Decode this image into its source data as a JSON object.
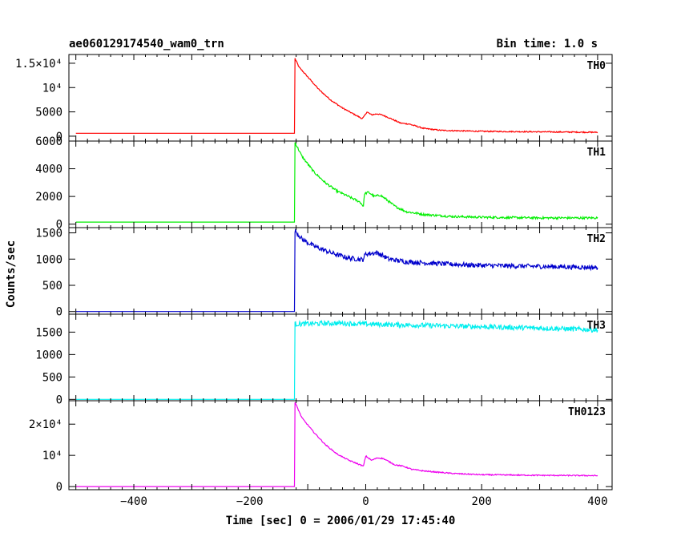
{
  "chart_data": {
    "type": "line",
    "title": "ae060129174540_wam0_trn",
    "subtitle": "Bin time: 1.0 s",
    "xlabel": "Time [sec] 0 = 2006/01/29 17:45:40",
    "ylabel": "Counts/sec",
    "xlim": [
      -512,
      425
    ],
    "x_ticks": [
      -400,
      -200,
      0,
      200,
      400
    ],
    "x_tick_labels": [
      "−400",
      "−200",
      "0",
      "200",
      "400"
    ],
    "panels": [
      {
        "name": "TH0",
        "color": "#ff0000",
        "ylim": [
          -1000,
          16800
        ],
        "y_ticks": [
          0,
          5000,
          10000,
          15000
        ],
        "y_tick_labels": [
          "0",
          "5000",
          "10⁴",
          "1.5×10⁴"
        ],
        "x": [
          -500,
          -125,
          -123,
          -122,
          -115,
          -100,
          -80,
          -60,
          -40,
          -20,
          -6,
          -3,
          2,
          10,
          20,
          30,
          40,
          60,
          75,
          100,
          130,
          200,
          300,
          400
        ],
        "y": [
          600,
          600,
          600,
          16000,
          14200,
          12200,
          9500,
          7400,
          5800,
          4500,
          3600,
          4000,
          5000,
          4400,
          4600,
          4300,
          3800,
          2700,
          2500,
          1600,
          1200,
          1000,
          900,
          800
        ],
        "noise": 120
      },
      {
        "name": "TH1",
        "color": "#00ee00",
        "ylim": [
          -250,
          6000
        ],
        "y_ticks": [
          0,
          2000,
          4000,
          6000
        ],
        "y_tick_labels": [
          "0",
          "2000",
          "4000",
          "6000"
        ],
        "x": [
          -500,
          -125,
          -123,
          -122,
          -110,
          -90,
          -70,
          -50,
          -30,
          -10,
          -4,
          -2,
          5,
          15,
          25,
          35,
          50,
          70,
          100,
          150,
          200,
          300,
          400
        ],
        "y": [
          150,
          150,
          150,
          5900,
          4900,
          3800,
          3000,
          2400,
          2000,
          1600,
          1300,
          2200,
          2300,
          2000,
          2100,
          1800,
          1300,
          900,
          700,
          550,
          500,
          450,
          450
        ],
        "noise": 80
      },
      {
        "name": "TH2",
        "color": "#0000cc",
        "ylim": [
          -50,
          1600
        ],
        "y_ticks": [
          0,
          500,
          1000,
          1500
        ],
        "y_tick_labels": [
          "0",
          "500",
          "1000",
          "1500"
        ],
        "x": [
          -500,
          -125,
          -123,
          -122,
          -110,
          -90,
          -60,
          -30,
          -5,
          0,
          20,
          40,
          70,
          100,
          150,
          200,
          300,
          400
        ],
        "y": [
          0,
          0,
          0,
          1550,
          1380,
          1250,
          1120,
          1020,
          990,
          1100,
          1120,
          1000,
          950,
          930,
          900,
          880,
          860,
          840
        ],
        "noise": 45
      },
      {
        "name": "TH3",
        "color": "#00eeee",
        "ylim": [
          -30,
          1900
        ],
        "y_ticks": [
          0,
          500,
          1000,
          1500
        ],
        "y_tick_labels": [
          "0",
          "500",
          "1000",
          "1500"
        ],
        "x": [
          -500,
          -125,
          -123,
          -122,
          -50,
          0,
          100,
          200,
          300,
          400
        ],
        "y": [
          0,
          0,
          0,
          1680,
          1700,
          1680,
          1650,
          1620,
          1590,
          1550
        ],
        "noise": 55
      },
      {
        "name": "TH0123",
        "color": "#ee00ee",
        "ylim": [
          -1000,
          27500
        ],
        "y_ticks": [
          0,
          10000,
          20000
        ],
        "y_tick_labels": [
          "0",
          "10⁴",
          "2×10⁴"
        ],
        "x": [
          -500,
          -125,
          -123,
          -122,
          -110,
          -90,
          -70,
          -50,
          -30,
          -10,
          -4,
          0,
          10,
          20,
          30,
          40,
          50,
          65,
          80,
          100,
          150,
          200,
          300,
          400
        ],
        "y": [
          0,
          0,
          0,
          27000,
          22000,
          17500,
          13500,
          10500,
          8500,
          7000,
          6500,
          9800,
          8400,
          9200,
          9000,
          8000,
          7000,
          6500,
          5500,
          5000,
          4200,
          3800,
          3600,
          3500
        ],
        "noise": 180
      }
    ]
  }
}
